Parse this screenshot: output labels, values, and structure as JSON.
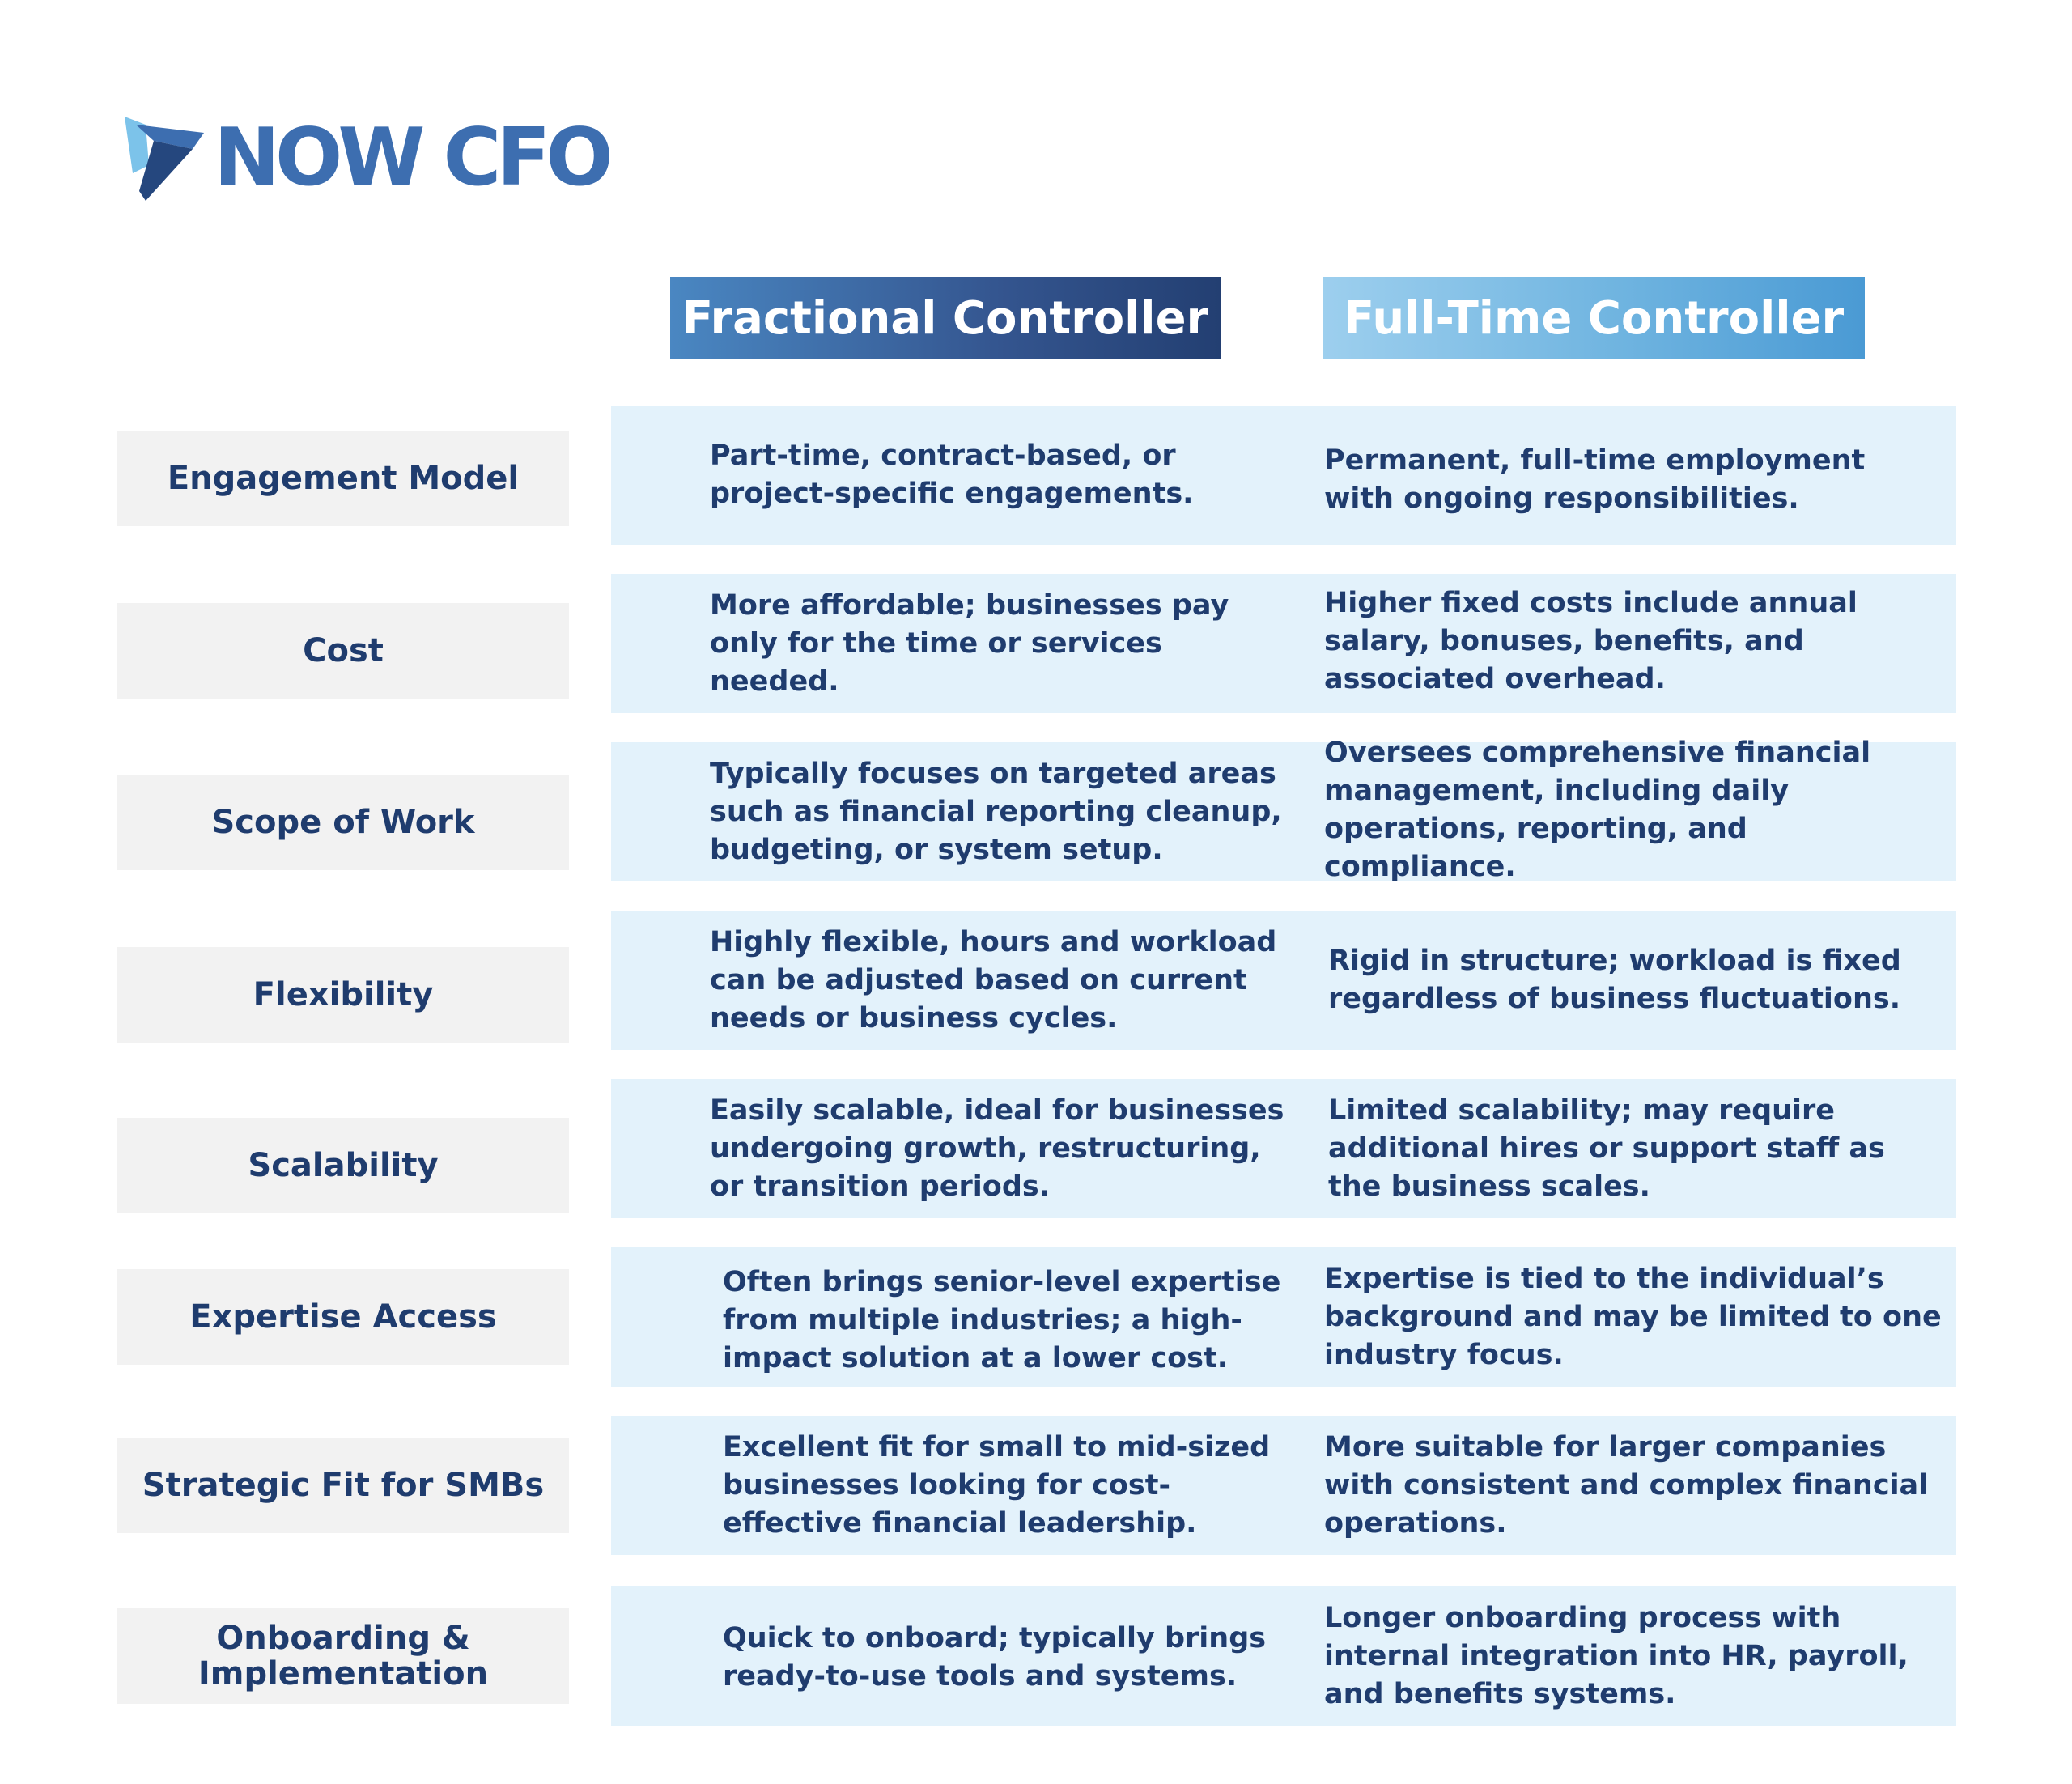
{
  "logo": {
    "text": "NOW CFO",
    "mark_colors": [
      "#7cc3ea",
      "#3d6eb0",
      "#25477e"
    ]
  },
  "columns": {
    "fractional": "Fractional Controller",
    "full_time": "Full-Time Controller"
  },
  "colors": {
    "navy_text": "#1f3c6e",
    "row_band": "#e3f2fb",
    "label_bg": "#f2f2f2",
    "fractional_header": "#34558f",
    "full_time_header": "#6fb4e0"
  },
  "rows": [
    {
      "label": "Engagement Model",
      "fractional": "Part-time, contract-based, or project-specific engagements.",
      "full_time": "Permanent, full-time employment with ongoing responsibilities."
    },
    {
      "label": "Cost",
      "fractional": "More affordable; businesses pay only for the time or services needed.",
      "full_time": "Higher fixed costs include annual salary, bonuses, benefits, and associated overhead."
    },
    {
      "label": "Scope of Work",
      "fractional": "Typically focuses on targeted areas such as financial reporting cleanup, budgeting, or system setup.",
      "full_time": "Oversees comprehensive financial management, including daily operations, reporting, and compliance."
    },
    {
      "label": "Flexibility",
      "fractional": "Highly flexible, hours and workload can be adjusted based on current needs or business cycles.",
      "full_time": "Rigid in structure; workload is fixed regardless of business fluctuations."
    },
    {
      "label": "Scalability",
      "fractional": "Easily scalable, ideal for businesses undergoing growth, restructuring, or transition periods.",
      "full_time": "Limited scalability; may require additional hires or support staff as the business scales."
    },
    {
      "label": "Expertise Access",
      "fractional": "Often brings senior-level expertise from multiple industries; a high-impact solution at a lower cost.",
      "full_time": "Expertise is tied to the individual’s background and may be limited to one industry focus."
    },
    {
      "label": "Strategic Fit for SMBs",
      "fractional": "Excellent fit for small to mid-sized businesses looking for cost-effective financial leadership.",
      "full_time": "More suitable for larger companies with consistent and complex financial operations."
    },
    {
      "label": "Onboarding & Implementation",
      "fractional": "Quick to onboard; typically brings ready-to-use tools and systems.",
      "full_time": "Longer onboarding process with internal integration into HR, payroll, and benefits systems."
    }
  ]
}
